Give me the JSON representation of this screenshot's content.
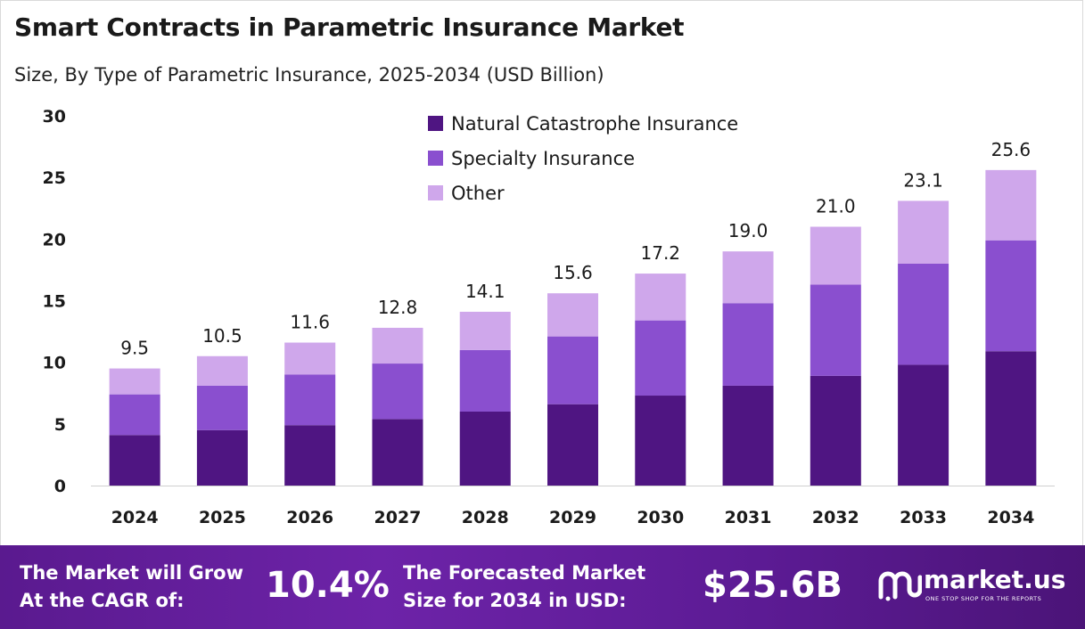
{
  "chart_data": {
    "type": "bar",
    "stacked": true,
    "title": "Smart Contracts in Parametric Insurance Market",
    "subtitle": "Size, By Type of Parametric Insurance, 2025-2034 (USD Billion)",
    "categories": [
      "2024",
      "2025",
      "2026",
      "2027",
      "2028",
      "2029",
      "2030",
      "2031",
      "2032",
      "2033",
      "2034"
    ],
    "series": [
      {
        "name": "Natural Catastrophe Insurance",
        "color": "#4f1582",
        "values": [
          4.1,
          4.5,
          4.9,
          5.4,
          6.0,
          6.6,
          7.3,
          8.1,
          8.9,
          9.8,
          10.9
        ]
      },
      {
        "name": "Specialty Insurance",
        "color": "#8a4fcf",
        "values": [
          3.3,
          3.6,
          4.1,
          4.5,
          5.0,
          5.5,
          6.1,
          6.7,
          7.4,
          8.2,
          9.0
        ]
      },
      {
        "name": "Other",
        "color": "#cfa7eb",
        "values": [
          2.1,
          2.4,
          2.6,
          2.9,
          3.1,
          3.5,
          3.8,
          4.2,
          4.7,
          5.1,
          5.7
        ]
      }
    ],
    "totals": [
      "9.5",
      "10.5",
      "11.6",
      "12.8",
      "14.1",
      "15.6",
      "17.2",
      "19.0",
      "21.0",
      "23.1",
      "25.6"
    ],
    "yticks": [
      0,
      5,
      10,
      15,
      20,
      25,
      30
    ],
    "ylim": [
      0,
      30
    ],
    "legend_position": "top-center",
    "grid": false
  },
  "footer": {
    "cagr_label_line1": "The Market will Grow",
    "cagr_label_line2": "At the CAGR of:",
    "cagr_value": "10.4%",
    "forecast_label_line1": "The Forecasted Market",
    "forecast_label_line2": "Size for 2034 in USD:",
    "forecast_value": "$25.6B",
    "logo_name": "market.us",
    "logo_tagline": "ONE STOP SHOP FOR THE REPORTS"
  }
}
